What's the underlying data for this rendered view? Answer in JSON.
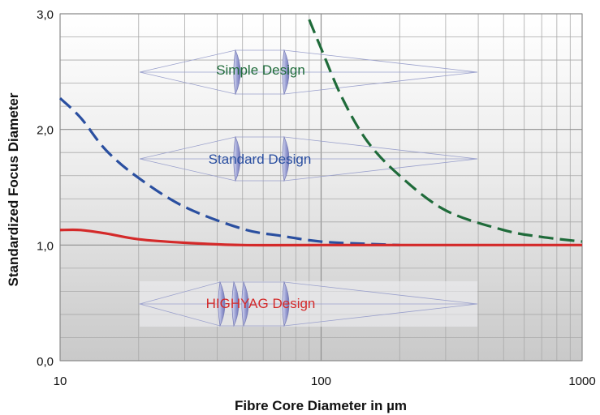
{
  "colors": {
    "simple": "#1f6b3a",
    "standard": "#2a4fa0",
    "highyag": "#d42a2a",
    "grid_major": "#8f8f8f",
    "grid_minor": "#a9a9a9",
    "lens": "#8a8fc8"
  },
  "chart_data": {
    "type": "line",
    "xscale": "log",
    "xlim": [
      10,
      1000
    ],
    "ylim": [
      0,
      3
    ],
    "xlabel": "Fibre Core Diameter in µm",
    "ylabel": "Standardized Focus Diameter",
    "x_ticks": [
      {
        "value": 10,
        "label": "10"
      },
      {
        "value": 100,
        "label": "100"
      },
      {
        "value": 1000,
        "label": "1000"
      }
    ],
    "y_ticks": [
      {
        "value": 0,
        "label": "0,0"
      },
      {
        "value": 1,
        "label": "1,0"
      },
      {
        "value": 2,
        "label": "2,0"
      },
      {
        "value": 3,
        "label": "3,0"
      }
    ],
    "grid": true,
    "series": [
      {
        "key": "simple",
        "style": "dashed",
        "points": [
          [
            90,
            2.95
          ],
          [
            100,
            2.7
          ],
          [
            120,
            2.28
          ],
          [
            150,
            1.9
          ],
          [
            200,
            1.6
          ],
          [
            300,
            1.3
          ],
          [
            500,
            1.13
          ],
          [
            700,
            1.07
          ],
          [
            1000,
            1.03
          ]
        ]
      },
      {
        "key": "standard",
        "style": "dashed",
        "points": [
          [
            10,
            2.27
          ],
          [
            12,
            2.1
          ],
          [
            15,
            1.82
          ],
          [
            20,
            1.58
          ],
          [
            30,
            1.33
          ],
          [
            50,
            1.14
          ],
          [
            70,
            1.08
          ],
          [
            100,
            1.03
          ],
          [
            150,
            1.01
          ],
          [
            200,
            1.0
          ]
        ]
      },
      {
        "key": "highyag",
        "style": "solid",
        "points": [
          [
            10,
            1.13
          ],
          [
            12,
            1.13
          ],
          [
            15,
            1.1
          ],
          [
            20,
            1.05
          ],
          [
            30,
            1.02
          ],
          [
            50,
            1.0
          ],
          [
            100,
            1.0
          ],
          [
            1000,
            1.0
          ]
        ]
      }
    ],
    "annotations": [
      {
        "key": "simple",
        "text": "Simple Design",
        "color": "#1f6b3a"
      },
      {
        "key": "standard",
        "text": "Standard Design",
        "color": "#2a4fa0"
      },
      {
        "key": "highyag",
        "text": "HIGHYAG Design",
        "color": "#d42a2a"
      }
    ]
  }
}
